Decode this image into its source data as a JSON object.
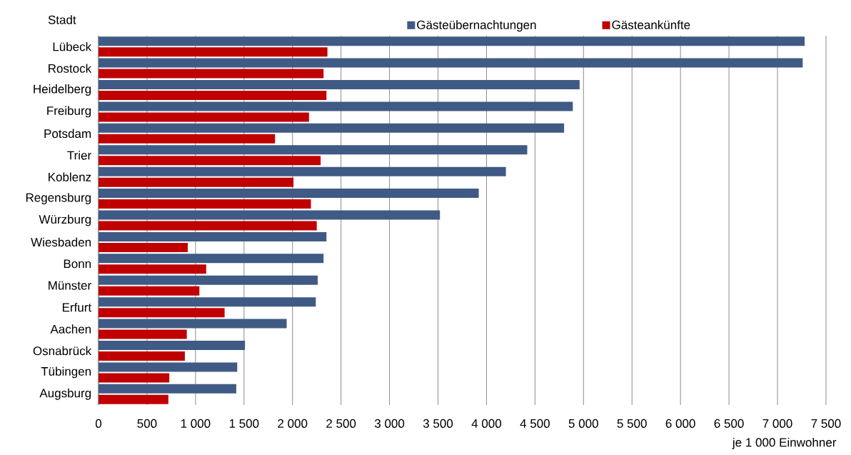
{
  "chart_data": {
    "type": "bar",
    "orientation": "horizontal",
    "ylabel": "Stadt",
    "xlabel": "je 1 000 Einwohner",
    "categories": [
      "Lübeck",
      "Rostock",
      "Heidelberg",
      "Freiburg",
      "Potsdam",
      "Trier",
      "Koblenz",
      "Regensburg",
      "Würzburg",
      "Wiesbaden",
      "Bonn",
      "Münster",
      "Erfurt",
      "Aachen",
      "Osnabrück",
      "Tübingen",
      "Augsburg"
    ],
    "series": [
      {
        "name": "Gästeübernachtungen",
        "color": "#3f5a84",
        "values": [
          7280,
          7260,
          4960,
          4890,
          4800,
          4420,
          4200,
          3920,
          3520,
          2350,
          2320,
          2260,
          2240,
          1940,
          1510,
          1430,
          1420
        ]
      },
      {
        "name": "Gästeankünfte",
        "color": "#c00000",
        "values": [
          2360,
          2320,
          2350,
          2170,
          1820,
          2290,
          2010,
          2190,
          2250,
          920,
          1110,
          1040,
          1300,
          910,
          890,
          730,
          720
        ]
      }
    ],
    "xlim": [
      0,
      7500
    ],
    "xticks": [
      0,
      500,
      {
        "value": 1000,
        "label": "1 000"
      },
      {
        "value": 1500,
        "label": "1 500"
      },
      {
        "value": 2000,
        "label": "2 000"
      },
      {
        "value": 2500,
        "label": "2 500"
      },
      {
        "value": 3000,
        "label": "3 000"
      },
      {
        "value": 3500,
        "label": "3 500"
      },
      {
        "value": 4000,
        "label": "4 000"
      },
      {
        "value": 4500,
        "label": "4 500"
      },
      {
        "value": 5000,
        "label": "5 000"
      },
      {
        "value": 5500,
        "label": "5 500"
      },
      {
        "value": 6000,
        "label": "6 000"
      },
      {
        "value": 6500,
        "label": "6 500"
      },
      {
        "value": 7000,
        "label": "7 000"
      },
      {
        "value": 7500,
        "label": "7 500"
      }
    ],
    "grid": "x",
    "legend": "top"
  }
}
